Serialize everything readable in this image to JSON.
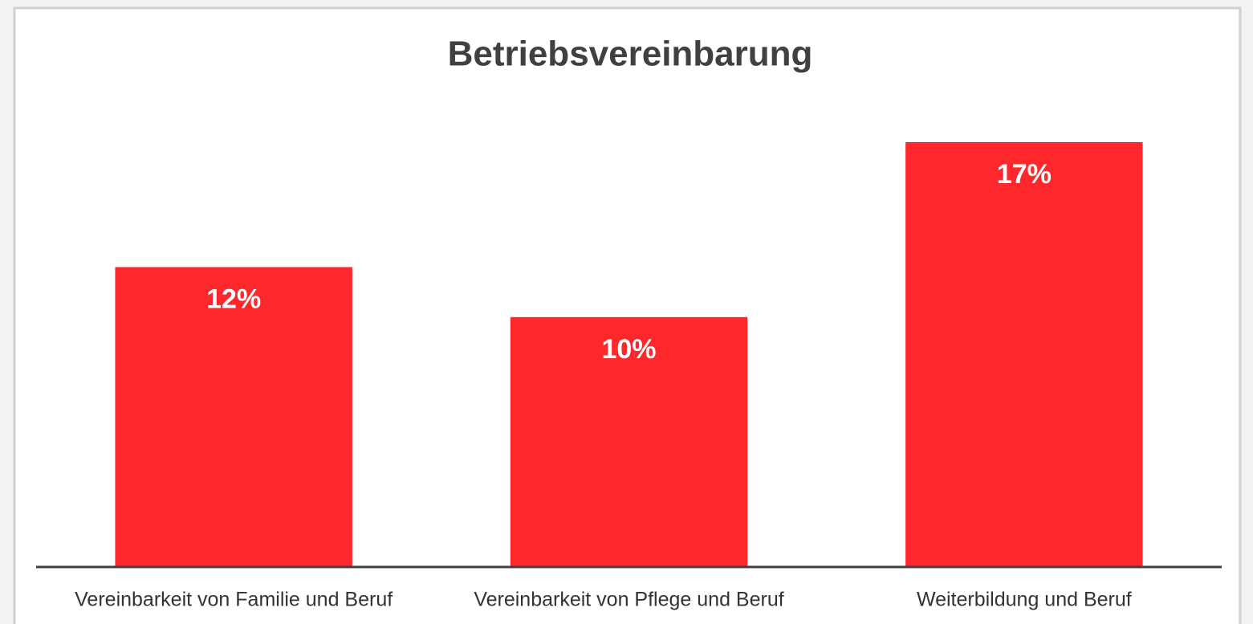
{
  "chart_data": {
    "type": "bar",
    "title": "Betriebsvereinbarung",
    "categories": [
      "Vereinbarkeit von Familie und Beruf",
      "Vereinbarkeit von Pflege und Beruf",
      "Weiterbildung und Beruf"
    ],
    "values": [
      12,
      10,
      17
    ],
    "value_labels": [
      "12%",
      "10%",
      "17%"
    ],
    "color": "#fe272b"
  }
}
